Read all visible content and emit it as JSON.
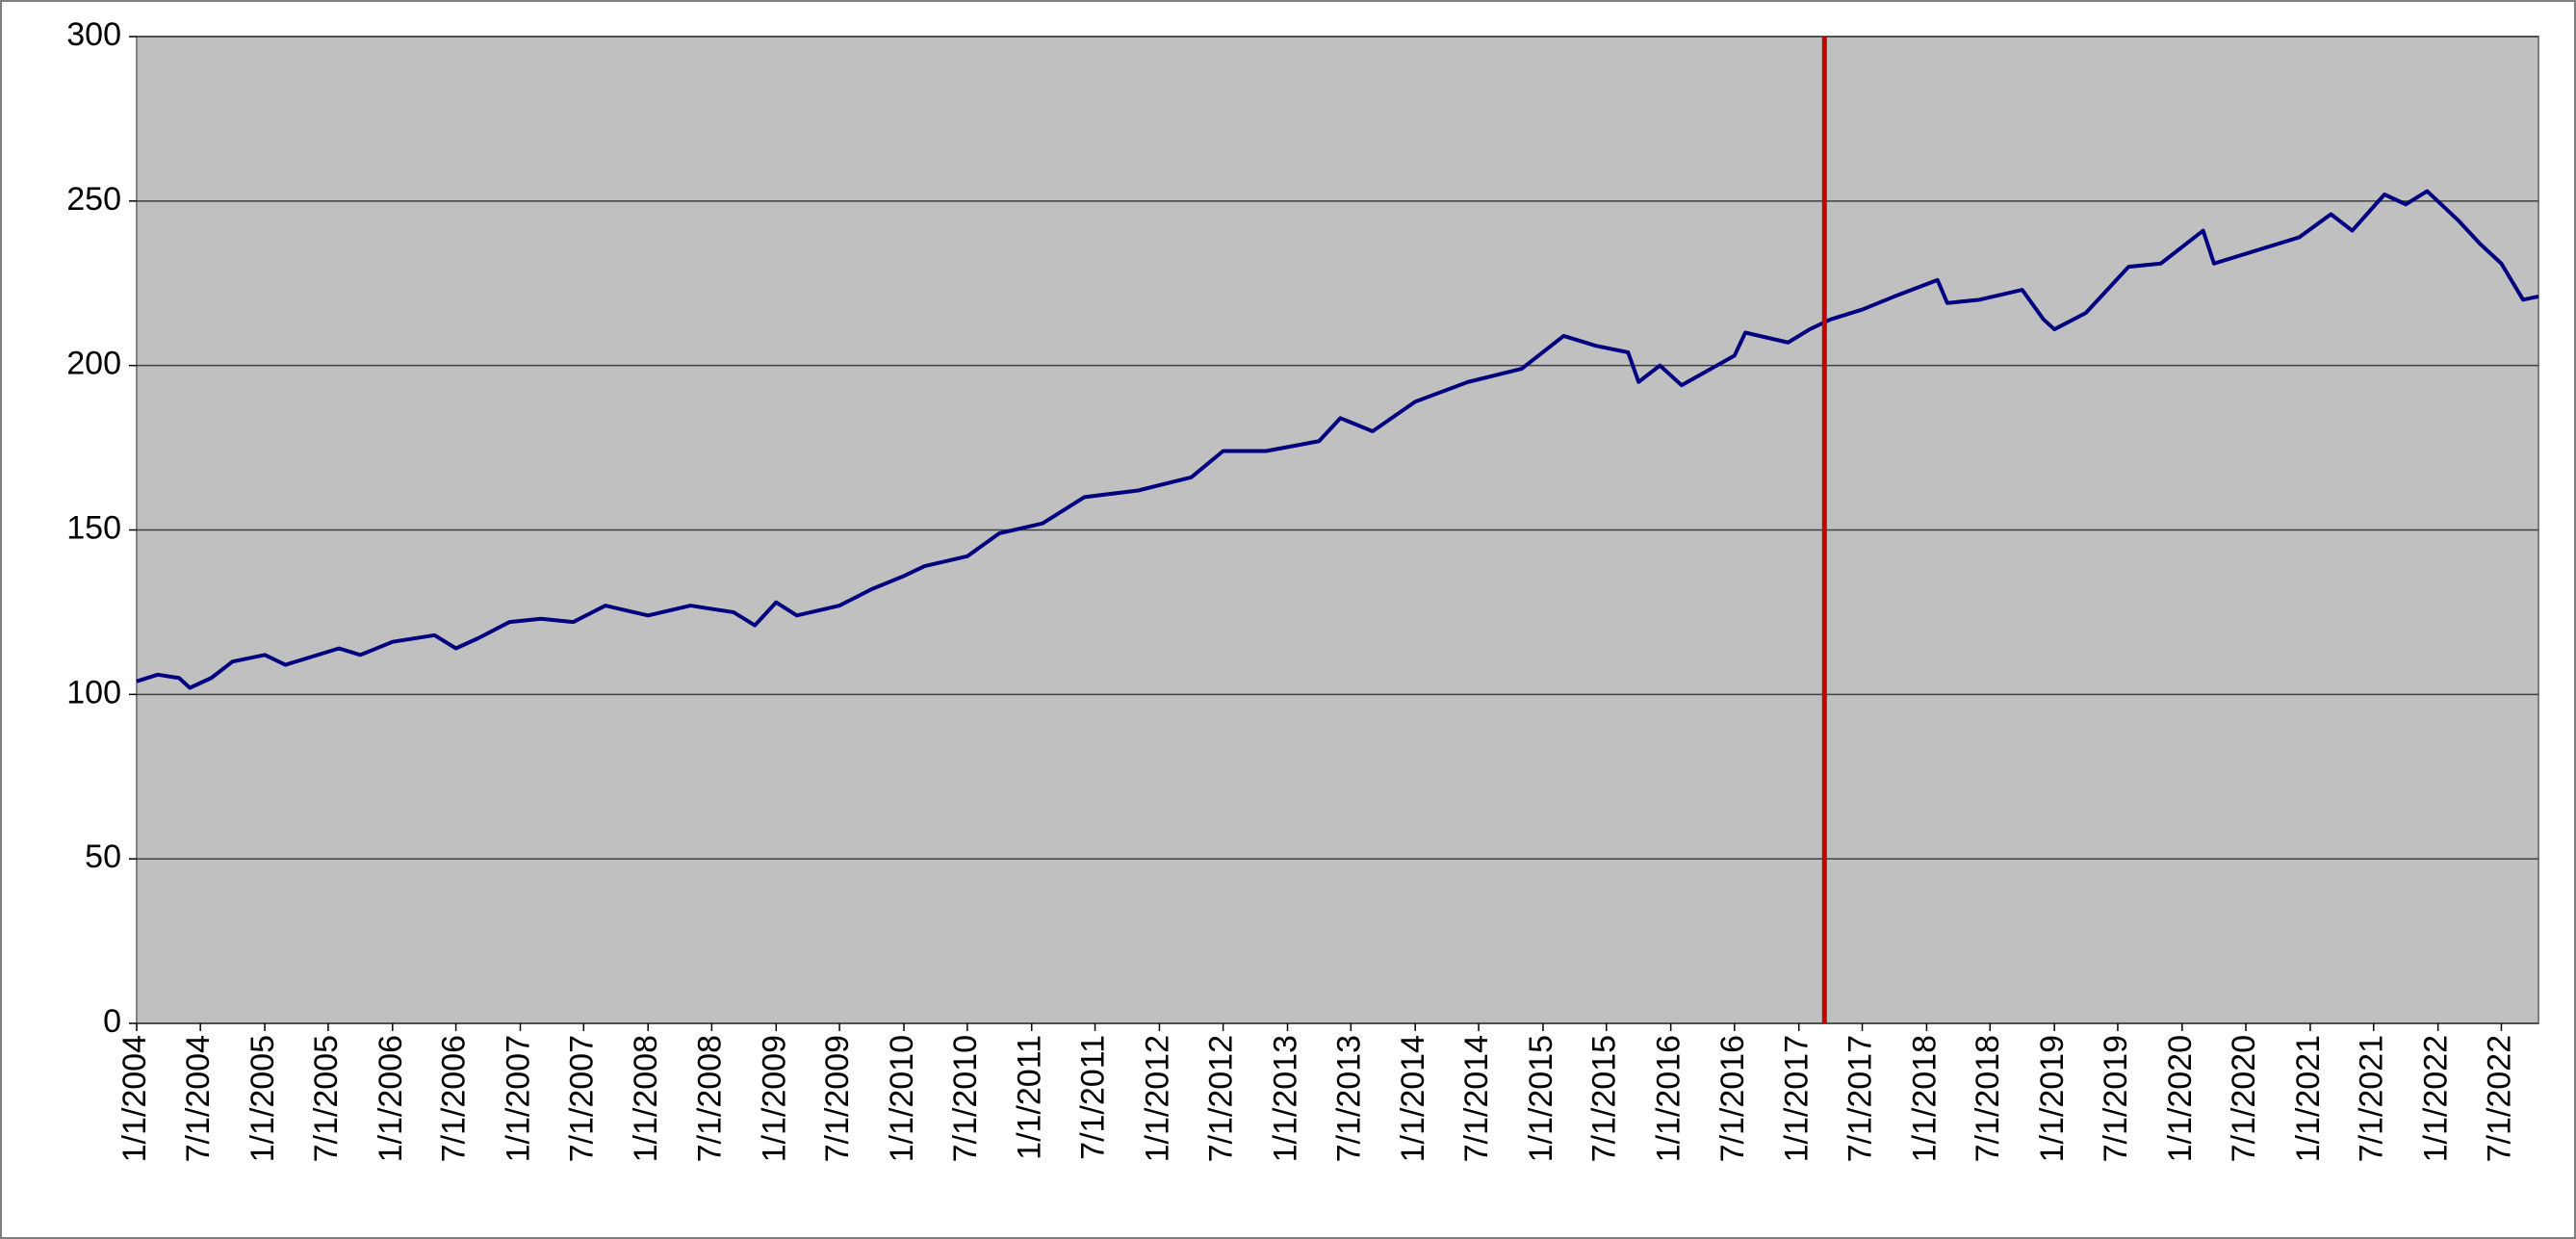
{
  "chart_data": {
    "type": "line",
    "x": [
      "1/1/2004",
      "3/1/2004",
      "5/1/2004",
      "6/1/2004",
      "8/1/2004",
      "10/1/2004",
      "1/1/2005",
      "3/1/2005",
      "5/1/2005",
      "8/1/2005",
      "10/1/2005",
      "1/1/2006",
      "5/1/2006",
      "7/1/2006",
      "9/1/2006",
      "12/1/2006",
      "3/1/2007",
      "6/1/2007",
      "9/1/2007",
      "1/1/2008",
      "5/1/2008",
      "9/1/2008",
      "11/1/2008",
      "1/1/2009",
      "3/1/2009",
      "7/1/2009",
      "10/1/2009",
      "1/1/2010",
      "3/1/2010",
      "7/1/2010",
      "10/1/2010",
      "2/1/2011",
      "6/1/2011",
      "11/1/2011",
      "4/1/2012",
      "7/1/2012",
      "11/1/2012",
      "4/1/2013",
      "6/1/2013",
      "9/1/2013",
      "1/1/2014",
      "6/1/2014",
      "11/1/2014",
      "3/1/2015",
      "6/1/2015",
      "9/1/2015",
      "10/1/2015",
      "12/1/2015",
      "2/1/2016",
      "7/1/2016",
      "8/1/2016",
      "12/1/2016",
      "2/1/2017",
      "4/1/2017",
      "7/1/2017",
      "10/1/2017",
      "2/1/2018",
      "3/1/2018",
      "6/1/2018",
      "10/1/2018",
      "12/1/2018",
      "1/1/2019",
      "4/1/2019",
      "8/1/2019",
      "11/1/2019",
      "3/1/2020",
      "4/1/2020",
      "8/1/2020",
      "12/1/2020",
      "3/1/2021",
      "5/1/2021",
      "8/1/2021",
      "10/1/2021",
      "12/1/2021",
      "3/1/2022",
      "5/1/2022",
      "7/1/2022",
      "9/1/2022",
      "10/15/2022"
    ],
    "series": [
      {
        "color": "#000080",
        "values": [
          104,
          106,
          105,
          102,
          105,
          110,
          112,
          109,
          111,
          114,
          112,
          116,
          118,
          114,
          117,
          122,
          123,
          122,
          127,
          124,
          127,
          125,
          121,
          128,
          124,
          127,
          132,
          136,
          139,
          142,
          149,
          152,
          160,
          162,
          166,
          174,
          174,
          177,
          184,
          180,
          189,
          195,
          199,
          209,
          206,
          204,
          195,
          200,
          194,
          203,
          210,
          207,
          211,
          214,
          217,
          221,
          226,
          219,
          220,
          223,
          214,
          211,
          216,
          230,
          231,
          241,
          231,
          235,
          239,
          246,
          241,
          252,
          249,
          253,
          244,
          237,
          231,
          220,
          221
        ]
      }
    ],
    "xlim": [
      "1/1/2004",
      "10/15/2022"
    ],
    "xticks": [
      "1/1/2004",
      "7/1/2004",
      "1/1/2005",
      "7/1/2005",
      "1/1/2006",
      "7/1/2006",
      "1/1/2007",
      "7/1/2007",
      "1/1/2008",
      "7/1/2008",
      "1/1/2009",
      "7/1/2009",
      "1/1/2010",
      "7/1/2010",
      "1/1/2011",
      "7/1/2011",
      "1/1/2012",
      "7/1/2012",
      "1/1/2013",
      "7/1/2013",
      "1/1/2014",
      "7/1/2014",
      "1/1/2015",
      "7/1/2015",
      "1/1/2016",
      "7/1/2016",
      "1/1/2017",
      "7/1/2017",
      "1/1/2018",
      "7/1/2018",
      "1/1/2019",
      "7/1/2019",
      "1/1/2020",
      "7/1/2020",
      "1/1/2021",
      "7/1/2021",
      "1/1/2022",
      "7/1/2022"
    ],
    "ylim": [
      0,
      300
    ],
    "yticks": [
      0,
      50,
      100,
      150,
      200,
      250,
      300
    ],
    "grid": true,
    "background": "#c0c0c0",
    "vline": {
      "x": "3/15/2017",
      "color": "#c00000"
    }
  }
}
